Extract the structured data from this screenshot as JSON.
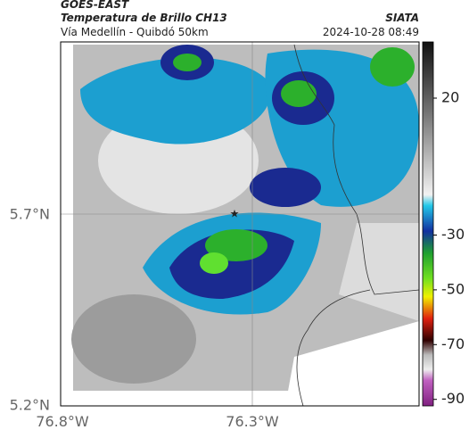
{
  "header": {
    "source": "GOES-EAST",
    "product": "Temperatura de Brillo CH13",
    "route": "Vía Medellín - Quibdó 50km",
    "org": "SIATA",
    "timestamp": "2024-10-28 08:49"
  },
  "axes": {
    "lat_labels": [
      "5.7°N",
      "5.2°N"
    ],
    "lon_labels": [
      "76.8°W",
      "76.3°W"
    ]
  },
  "colorbar": {
    "ticks": [
      20,
      -30,
      -50,
      -70,
      -90
    ]
  }
}
